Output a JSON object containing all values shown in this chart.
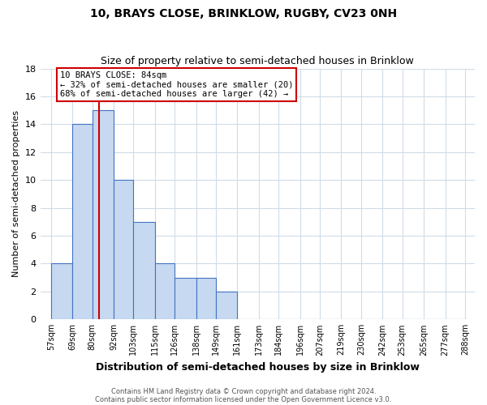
{
  "title": "10, BRAYS CLOSE, BRINKLOW, RUGBY, CV23 0NH",
  "subtitle": "Size of property relative to semi-detached houses in Brinklow",
  "xlabel": "Distribution of semi-detached houses by size in Brinklow",
  "ylabel": "Number of semi-detached properties",
  "bar_edges": [
    57,
    69,
    80,
    92,
    103,
    115,
    126,
    138,
    149,
    161,
    173,
    184,
    196,
    207,
    219,
    230,
    242,
    253,
    265,
    277,
    288
  ],
  "bar_heights": [
    4,
    14,
    15,
    10,
    7,
    4,
    3,
    3,
    2,
    0,
    0,
    0,
    0,
    0,
    0,
    0,
    0,
    0,
    0,
    0
  ],
  "bar_color": "#c6d9f0",
  "bar_edge_color": "#4472c4",
  "property_line_x": 84,
  "property_line_color": "#cc0000",
  "ylim": [
    0,
    18
  ],
  "yticks": [
    0,
    2,
    4,
    6,
    8,
    10,
    12,
    14,
    16,
    18
  ],
  "tick_labels": [
    "57sqm",
    "69sqm",
    "80sqm",
    "92sqm",
    "103sqm",
    "115sqm",
    "126sqm",
    "138sqm",
    "149sqm",
    "161sqm",
    "173sqm",
    "184sqm",
    "196sqm",
    "207sqm",
    "219sqm",
    "230sqm",
    "242sqm",
    "253sqm",
    "265sqm",
    "277sqm",
    "288sqm"
  ],
  "annotation_title": "10 BRAYS CLOSE: 84sqm",
  "annotation_line1": "← 32% of semi-detached houses are smaller (20)",
  "annotation_line2": "68% of semi-detached houses are larger (42) →",
  "footer_line1": "Contains HM Land Registry data © Crown copyright and database right 2024.",
  "footer_line2": "Contains public sector information licensed under the Open Government Licence v3.0.",
  "bg_color": "#ffffff",
  "grid_color": "#d0dce8",
  "title_fontsize": 10,
  "subtitle_fontsize": 9
}
